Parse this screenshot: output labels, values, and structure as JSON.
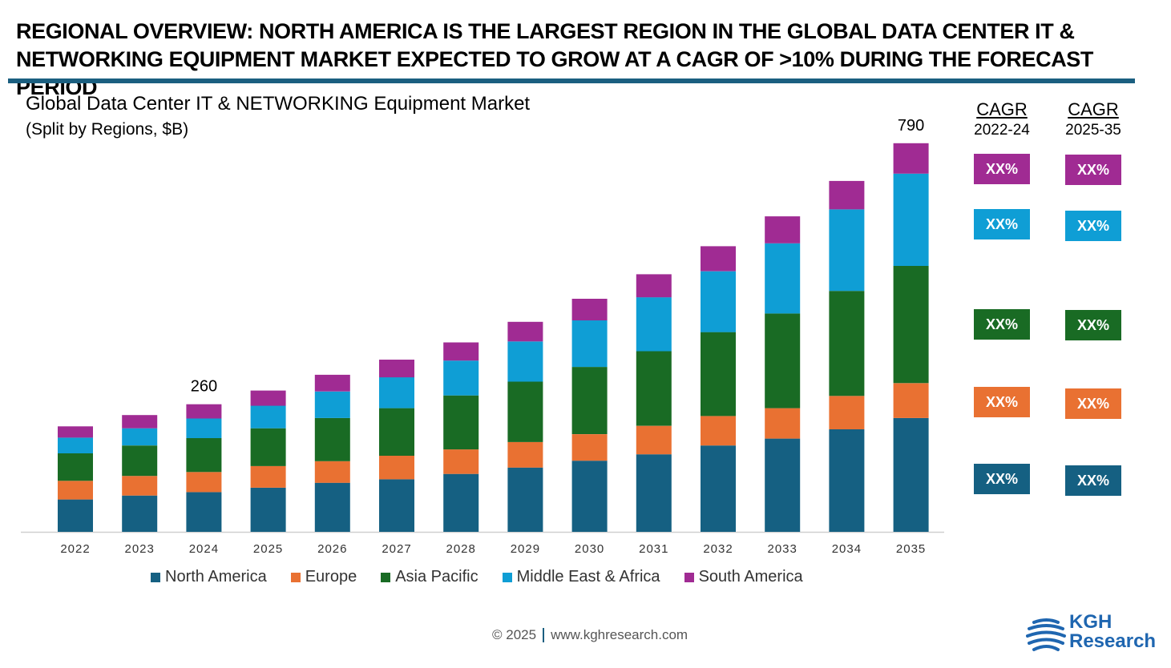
{
  "headline": {
    "line1": "REGIONAL OVERVIEW: NORTH AMERICA IS THE LARGEST REGION IN THE GLOBAL DATA CENTER IT &",
    "line2": "NETWORKING EQUIPMENT MARKET EXPECTED TO GROW AT A CAGR OF >10% DURING THE FORECAST PERIOD"
  },
  "chart_data": {
    "type": "bar",
    "stacked": true,
    "title": "Global Data Center IT & NETWORKING Equipment Market",
    "subtitle": "(Split by Regions, $B)",
    "categories": [
      "2022",
      "2023",
      "2024",
      "2025",
      "2026",
      "2027",
      "2028",
      "2029",
      "2030",
      "2031",
      "2032",
      "2033",
      "2034",
      "2035"
    ],
    "series": [
      {
        "name": "North America",
        "color": "#156082",
        "values": [
          66,
          74,
          81,
          90,
          100,
          107,
          118,
          131,
          145,
          158,
          176,
          190,
          209,
          232
        ]
      },
      {
        "name": "Europe",
        "color": "#e97132",
        "values": [
          38,
          40,
          41,
          44,
          44,
          48,
          50,
          52,
          54,
          58,
          60,
          62,
          68,
          71
        ]
      },
      {
        "name": "Asia Pacific",
        "color": "#196b24",
        "values": [
          56,
          62,
          69,
          77,
          88,
          97,
          110,
          123,
          137,
          152,
          171,
          193,
          214,
          239
        ]
      },
      {
        "name": "Middle East & Africa",
        "color": "#0f9ed5",
        "values": [
          32,
          35,
          40,
          46,
          54,
          63,
          71,
          82,
          95,
          110,
          124,
          143,
          166,
          188
        ]
      },
      {
        "name": "South America",
        "color": "#a02b93",
        "values": [
          23,
          27,
          29,
          31,
          34,
          36,
          37,
          40,
          44,
          47,
          51,
          55,
          58,
          62
        ]
      }
    ],
    "data_labels": [
      {
        "category": "2024",
        "text": "260"
      },
      {
        "category": "2035",
        "text": "790"
      }
    ],
    "ylim": [
      0,
      800
    ],
    "legend_position": "bottom",
    "grid": false
  },
  "cagr": {
    "columns": [
      {
        "title": "CAGR",
        "period": "2022-24"
      },
      {
        "title": "CAGR",
        "period": "2025-35"
      }
    ],
    "rows": [
      {
        "region": "South America",
        "color": "#a02b93",
        "values": [
          "XX%",
          "XX%"
        ]
      },
      {
        "region": "Middle East & Africa",
        "color": "#0f9ed5",
        "values": [
          "XX%",
          "XX%"
        ]
      },
      {
        "region": "Asia Pacific",
        "color": "#196b24",
        "values": [
          "XX%",
          "XX%"
        ]
      },
      {
        "region": "Europe",
        "color": "#e97132",
        "values": [
          "XX%",
          "XX%"
        ]
      },
      {
        "region": "North America",
        "color": "#156082",
        "values": [
          "XX%",
          "XX%"
        ]
      }
    ]
  },
  "footer": {
    "copyright": "© 2025",
    "url": "www.kghresearch.com"
  },
  "logo": {
    "line1": "KGH",
    "line2": "Research",
    "icon": "globe-icon",
    "color": "#1f66b0"
  }
}
